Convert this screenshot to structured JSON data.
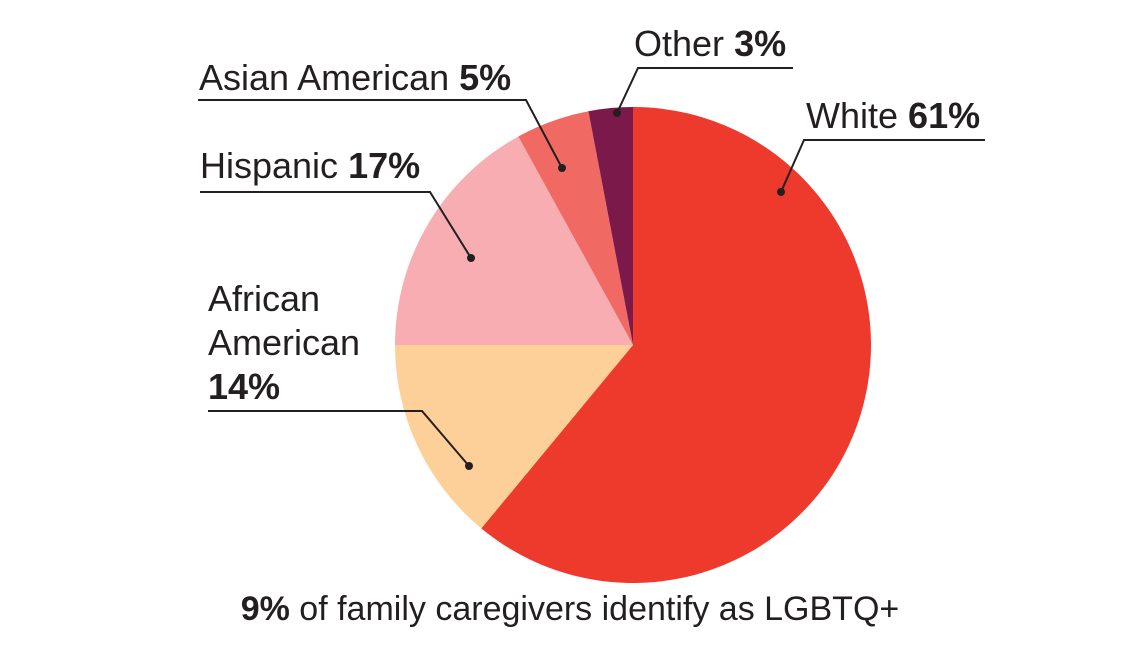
{
  "chart_data": {
    "type": "pie",
    "slices": [
      {
        "label": "White",
        "value_label": "61%",
        "value": 61,
        "color": "#ee3a2d"
      },
      {
        "label": "African American",
        "value_label": "14%",
        "value": 14,
        "color": "#fdd099"
      },
      {
        "label": "Hispanic",
        "value_label": "17%",
        "value": 17,
        "color": "#f7adb1"
      },
      {
        "label": "Asian American",
        "value_label": "5%",
        "value": 5,
        "color": "#f06a63"
      },
      {
        "label": "Other",
        "value_label": "3%",
        "value": 3,
        "color": "#7b1a4a"
      }
    ]
  },
  "footnote": {
    "bold": "9%",
    "rest": " of family caregivers identify as LGBTQ+"
  }
}
